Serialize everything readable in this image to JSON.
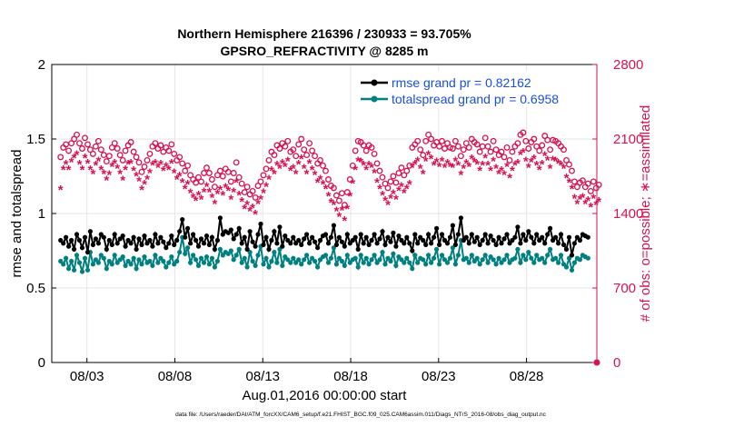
{
  "chart_data": {
    "type": "line",
    "title_line1": "Northern Hemisphere 216396 / 230933 = 93.705%",
    "title_line2": "GPSRO_REFRACTIVITY @ 8285 m",
    "xlabel": "Aug.01,2016 00:00:00 start",
    "ylabel_left": "rmse and totalspread",
    "ylabel_right": "# of obs: o=possible; ∗=assimilated",
    "footnote": "data file: /Users/raeder/DAI/ATM_forcXX/CAM6_setup/f.e21.FHIST_BGC.f09_025.CAM6assim.011/Diags_NTrS_2016-08/obs_diag_output.nc",
    "x_tick_labels": [
      "08/03",
      "08/08",
      "08/13",
      "08/18",
      "08/23",
      "08/28"
    ],
    "x_tick_days": [
      3,
      8,
      13,
      18,
      23,
      28
    ],
    "xlim": [
      1,
      32
    ],
    "ylim_left": [
      0,
      2
    ],
    "ylim_right": [
      0,
      2800
    ],
    "y_ticks_left": [
      "0",
      "0.5",
      "1",
      "1.5",
      "2"
    ],
    "y_ticks_right": [
      "0",
      "700",
      "1400",
      "2100",
      "2800"
    ],
    "colors": {
      "rmse": "#000000",
      "spread": "#008080",
      "obs": "#d6124f",
      "legend_text": "#1a4fd8"
    },
    "legend": [
      {
        "key": "rmse",
        "label": "rmse grand pr = 0.82162"
      },
      {
        "key": "spread",
        "label": "totalspread grand pr = 0.6958"
      }
    ],
    "series": [
      {
        "name": "rmse",
        "axis": "left",
        "values": [
          0.82,
          0.8,
          0.84,
          0.78,
          0.82,
          0.76,
          0.86,
          0.82,
          0.77,
          0.84,
          0.74,
          0.88,
          0.79,
          0.83,
          0.8,
          0.86,
          0.84,
          0.76,
          0.82,
          0.79,
          0.86,
          0.8,
          0.83,
          0.85,
          0.78,
          0.82,
          0.8,
          0.84,
          0.76,
          0.83,
          0.79,
          0.85,
          0.8,
          0.82,
          0.78,
          0.86,
          0.8,
          0.84,
          0.81,
          0.77,
          0.8,
          0.85,
          0.79,
          0.82,
          0.88,
          0.96,
          0.84,
          0.9,
          0.8,
          0.86,
          0.82,
          0.78,
          0.83,
          0.8,
          0.85,
          0.79,
          0.84,
          0.76,
          0.82,
          0.97,
          0.86,
          0.88,
          0.87,
          0.89,
          0.83,
          0.86,
          0.9,
          0.8,
          0.84,
          0.76,
          0.88,
          0.81,
          0.78,
          0.86,
          0.93,
          0.79,
          0.84,
          0.76,
          0.82,
          0.88,
          0.8,
          0.91,
          0.78,
          0.85,
          0.82,
          0.8,
          0.84,
          0.8,
          0.82,
          0.79,
          0.83,
          0.86,
          0.8,
          0.84,
          0.81,
          0.77,
          0.82,
          0.85,
          0.86,
          0.8,
          0.84,
          0.92,
          0.79,
          0.84,
          0.81,
          0.78,
          0.86,
          0.8,
          0.82,
          0.84,
          0.76,
          0.86,
          0.8,
          0.84,
          0.79,
          0.82,
          0.86,
          0.8,
          0.83,
          0.88,
          0.79,
          0.84,
          0.81,
          0.87,
          0.78,
          0.85,
          0.82,
          0.8,
          0.84,
          0.8,
          0.75,
          0.86,
          0.8,
          0.84,
          0.82,
          0.79,
          0.86,
          0.8,
          0.84,
          0.9,
          0.79,
          0.86,
          0.82,
          0.8,
          0.84,
          0.92,
          0.79,
          0.86,
          0.97,
          0.82,
          0.84,
          0.8,
          0.86,
          0.81,
          0.84,
          0.79,
          0.82,
          0.86,
          0.8,
          0.85,
          0.82,
          0.79,
          0.84,
          0.8,
          0.83,
          0.86,
          0.8,
          0.82,
          0.84,
          0.91,
          0.8,
          0.86,
          0.82,
          0.88,
          0.84,
          0.8,
          0.86,
          0.82,
          0.84,
          0.8,
          0.86,
          0.9,
          0.82,
          0.84,
          0.8,
          0.86,
          0.79,
          0.76,
          0.84,
          0.72,
          0.8,
          0.84,
          0.82,
          0.86,
          0.85,
          0.84
        ]
      },
      {
        "name": "totalspread",
        "axis": "left",
        "values": [
          0.68,
          0.66,
          0.7,
          0.63,
          0.68,
          0.62,
          0.72,
          0.67,
          0.61,
          0.7,
          0.62,
          0.74,
          0.66,
          0.69,
          0.67,
          0.72,
          0.7,
          0.63,
          0.68,
          0.66,
          0.72,
          0.67,
          0.69,
          0.71,
          0.65,
          0.68,
          0.66,
          0.7,
          0.63,
          0.69,
          0.66,
          0.71,
          0.67,
          0.68,
          0.65,
          0.72,
          0.67,
          0.7,
          0.68,
          0.64,
          0.67,
          0.71,
          0.66,
          0.68,
          0.74,
          0.84,
          0.73,
          0.77,
          0.67,
          0.72,
          0.69,
          0.65,
          0.7,
          0.67,
          0.71,
          0.66,
          0.7,
          0.64,
          0.68,
          0.76,
          0.72,
          0.74,
          0.73,
          0.75,
          0.69,
          0.72,
          0.76,
          0.67,
          0.7,
          0.64,
          0.74,
          0.68,
          0.65,
          0.72,
          0.78,
          0.66,
          0.7,
          0.64,
          0.68,
          0.74,
          0.67,
          0.76,
          0.65,
          0.71,
          0.69,
          0.67,
          0.7,
          0.67,
          0.69,
          0.66,
          0.69,
          0.72,
          0.67,
          0.7,
          0.68,
          0.64,
          0.69,
          0.71,
          0.72,
          0.67,
          0.7,
          0.77,
          0.66,
          0.7,
          0.68,
          0.65,
          0.72,
          0.67,
          0.69,
          0.7,
          0.64,
          0.72,
          0.67,
          0.7,
          0.66,
          0.69,
          0.72,
          0.67,
          0.69,
          0.74,
          0.66,
          0.7,
          0.68,
          0.73,
          0.65,
          0.71,
          0.69,
          0.67,
          0.7,
          0.67,
          0.63,
          0.72,
          0.67,
          0.7,
          0.69,
          0.66,
          0.72,
          0.67,
          0.7,
          0.76,
          0.66,
          0.72,
          0.69,
          0.67,
          0.7,
          0.77,
          0.66,
          0.72,
          0.82,
          0.69,
          0.7,
          0.67,
          0.72,
          0.68,
          0.7,
          0.66,
          0.69,
          0.72,
          0.67,
          0.71,
          0.69,
          0.66,
          0.7,
          0.67,
          0.69,
          0.72,
          0.67,
          0.69,
          0.7,
          0.76,
          0.67,
          0.72,
          0.69,
          0.74,
          0.7,
          0.67,
          0.72,
          0.69,
          0.7,
          0.67,
          0.72,
          0.76,
          0.69,
          0.7,
          0.67,
          0.72,
          0.66,
          0.64,
          0.7,
          0.62,
          0.67,
          0.7,
          0.69,
          0.72,
          0.71,
          0.7
        ]
      },
      {
        "name": "obs_possible",
        "axis": "right",
        "marker": "o",
        "values": [
          1930,
          2020,
          2050,
          1990,
          2060,
          2100,
          2140,
          2060,
          2010,
          2110,
          2050,
          2000,
          1960,
          2030,
          2080,
          2000,
          1950,
          1890,
          1940,
          2020,
          2060,
          2010,
          1950,
          1900,
          1990,
          2040,
          2070,
          1980,
          1930,
          1880,
          1790,
          1840,
          1900,
          1960,
          2030,
          2060,
          2010,
          2040,
          1980,
          2020,
          1990,
          2050,
          1960,
          1900,
          1930,
          1870,
          1800,
          1850,
          1760,
          1720,
          1690,
          1740,
          1700,
          1780,
          1830,
          1780,
          1720,
          1650,
          1760,
          1800,
          1750,
          1820,
          1790,
          1700,
          1780,
          1880,
          1740,
          1680,
          1600,
          1650,
          1580,
          1610,
          1550,
          1660,
          1700,
          1760,
          1820,
          1900,
          1980,
          1950,
          2040,
          2010,
          2060,
          2030,
          2080,
          1980,
          2000,
          1940,
          2050,
          2100,
          2000,
          1950,
          2060,
          1990,
          1940,
          1870,
          1900,
          1850,
          1800,
          1720,
          1660,
          1640,
          1570,
          1520,
          1590,
          1480,
          1600,
          1720,
          1850,
          1990,
          2080,
          2070,
          2040,
          1990,
          2040,
          2020,
          1960,
          1870,
          1800,
          1740,
          1680,
          1640,
          1700,
          1750,
          1690,
          1780,
          1830,
          1760,
          1800,
          1850,
          2020,
          2050,
          2080,
          2000,
          1950,
          2080,
          2140,
          2100,
          2040,
          2070,
          2030,
          2080,
          2010,
          2060,
          2020,
          2010,
          2080,
          2030,
          1940,
          2000,
          2060,
          2020,
          2100,
          2070,
          2050,
          1980,
          2030,
          2110,
          2030,
          1980,
          2080,
          2000,
          1950,
          1980,
          1930,
          2020,
          1900,
          1980,
          2030,
          2060,
          2140,
          2160,
          2080,
          2010,
          2070,
          2100,
          2030,
          1990,
          2040,
          2130,
          2090,
          2000,
          2090,
          2080,
          2060,
          2030,
          2000,
          1900,
          1860,
          1800,
          1700,
          1650,
          1690,
          1710,
          1650,
          1680,
          1610,
          1700,
          1640,
          1670
        ]
      },
      {
        "name": "obs_assimilated",
        "axis": "right",
        "marker": "*",
        "values": [
          1630,
          1820,
          1870,
          1820,
          1890,
          1930,
          1960,
          1870,
          1820,
          1930,
          1880,
          1820,
          1780,
          1860,
          1900,
          1820,
          1780,
          1720,
          1770,
          1850,
          1880,
          1830,
          1780,
          1720,
          1820,
          1870,
          1880,
          1810,
          1760,
          1710,
          1630,
          1680,
          1730,
          1790,
          1860,
          1880,
          1840,
          1870,
          1810,
          1850,
          1820,
          1880,
          1790,
          1730,
          1760,
          1700,
          1640,
          1680,
          1600,
          1560,
          1530,
          1580,
          1540,
          1610,
          1660,
          1610,
          1560,
          1500,
          1590,
          1630,
          1580,
          1650,
          1620,
          1540,
          1610,
          1700,
          1580,
          1520,
          1450,
          1490,
          1430,
          1460,
          1400,
          1500,
          1540,
          1600,
          1660,
          1730,
          1810,
          1780,
          1860,
          1830,
          1880,
          1850,
          1900,
          1810,
          1830,
          1780,
          1870,
          1920,
          1830,
          1780,
          1880,
          1820,
          1770,
          1700,
          1730,
          1680,
          1640,
          1570,
          1510,
          1490,
          1430,
          1380,
          1440,
          1340,
          1450,
          1570,
          1690,
          1820,
          1900,
          1890,
          1860,
          1820,
          1860,
          1840,
          1790,
          1700,
          1640,
          1580,
          1530,
          1490,
          1550,
          1590,
          1540,
          1620,
          1660,
          1600,
          1640,
          1680,
          1840,
          1870,
          1900,
          1830,
          1780,
          1900,
          1960,
          1920,
          1860,
          1890,
          1850,
          1900,
          1840,
          1880,
          1850,
          1840,
          1900,
          1860,
          1770,
          1830,
          1880,
          1850,
          1920,
          1890,
          1870,
          1810,
          1860,
          1930,
          1860,
          1810,
          1900,
          1830,
          1780,
          1810,
          1770,
          1850,
          1740,
          1810,
          1860,
          1880,
          1960,
          1980,
          1900,
          1840,
          1890,
          1920,
          1860,
          1820,
          1870,
          1950,
          1910,
          1830,
          1910,
          1900,
          1880,
          1860,
          1830,
          1740,
          1700,
          1640,
          1550,
          1500,
          1540,
          1560,
          1500,
          1530,
          1470,
          1550,
          1490,
          1520
        ]
      }
    ]
  }
}
